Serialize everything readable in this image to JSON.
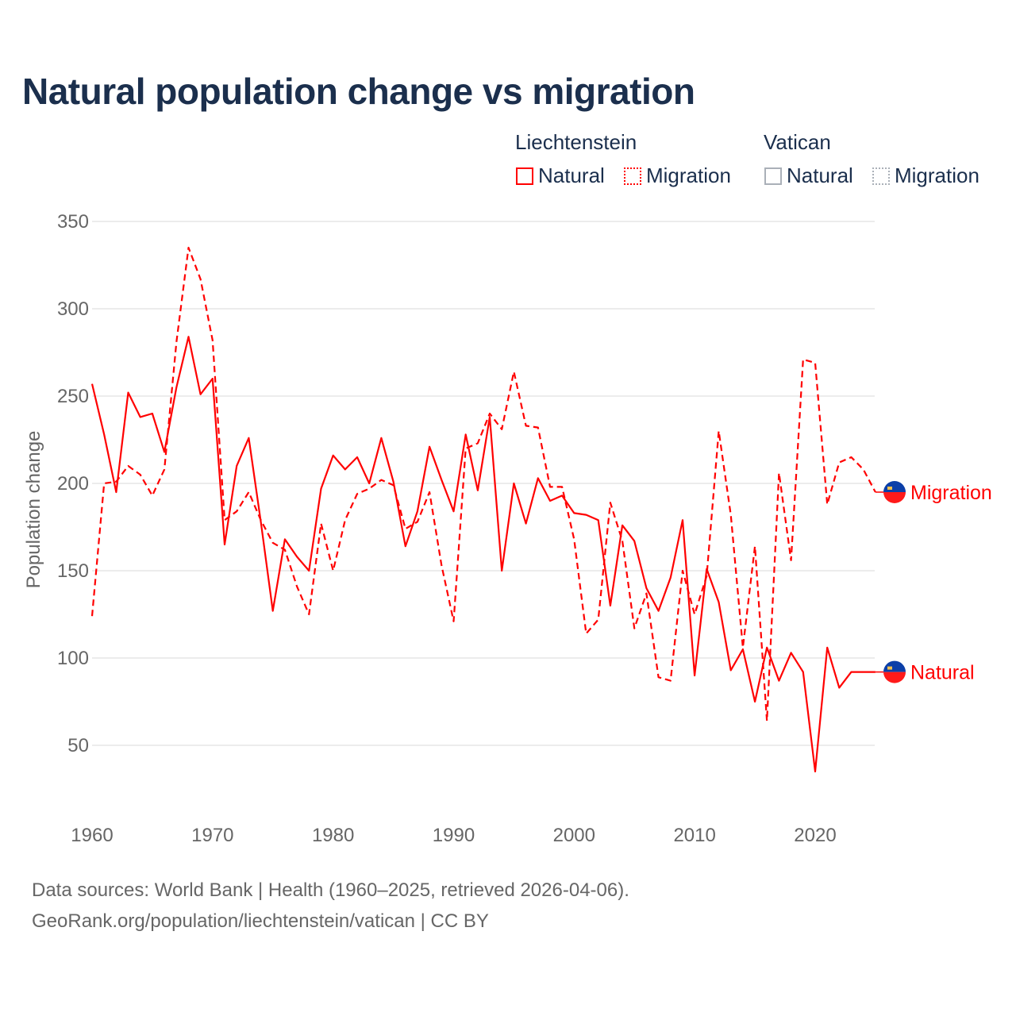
{
  "title": "Natural population change vs migration",
  "legend": {
    "groups": [
      {
        "name": "Liechtenstein",
        "color": "#ff0000",
        "items": [
          "Natural",
          "Migration"
        ]
      },
      {
        "name": "Vatican",
        "color": "#aab0b8",
        "items": [
          "Natural",
          "Migration"
        ]
      }
    ]
  },
  "footer": {
    "line1": "Data sources: World Bank | Health (1960–2025, retrieved 2026-04-06).",
    "line2": "GeoRank.org/population/liechtenstein/vatican | CC BY"
  },
  "chart_data": {
    "type": "line",
    "title": "Natural population change vs migration",
    "xlabel": "",
    "ylabel": "Population change",
    "xlim": [
      1960,
      2025
    ],
    "ylim": [
      20,
      350
    ],
    "yticks": [
      50,
      100,
      150,
      200,
      250,
      300,
      350
    ],
    "xticks": [
      1960,
      1970,
      1980,
      1990,
      2000,
      2010,
      2020
    ],
    "grid": true,
    "legend_position": "top-right",
    "x_start": 1960,
    "series": [
      {
        "name": "Natural",
        "country": "Liechtenstein",
        "style": "solid",
        "color": "#ff0000",
        "end_label": "Natural",
        "values": [
          257,
          228,
          195,
          252,
          238,
          240,
          218,
          255,
          284,
          251,
          260,
          165,
          210,
          226,
          178,
          127,
          168,
          158,
          150,
          197,
          216,
          208,
          215,
          200,
          226,
          201,
          164,
          184,
          221,
          202,
          184,
          228,
          196,
          238,
          150,
          200,
          177,
          203,
          190,
          193,
          183,
          182,
          179,
          130,
          176,
          167,
          140,
          127,
          146,
          179,
          90,
          151,
          132,
          93,
          105,
          75,
          106,
          87,
          103,
          92,
          35,
          106,
          83,
          92,
          92,
          92
        ]
      },
      {
        "name": "Migration",
        "country": "Liechtenstein",
        "style": "dashed",
        "color": "#ff0000",
        "end_label": "Migration",
        "values": [
          124,
          200,
          201,
          210,
          205,
          193,
          208,
          281,
          335,
          317,
          282,
          179,
          184,
          195,
          179,
          166,
          162,
          141,
          125,
          177,
          150,
          179,
          194,
          197,
          202,
          199,
          174,
          178,
          195,
          153,
          121,
          220,
          223,
          240,
          231,
          264,
          233,
          232,
          198,
          198,
          168,
          114,
          122,
          189,
          167,
          117,
          137,
          89,
          87,
          150,
          125,
          147,
          230,
          182,
          106,
          164,
          64,
          206,
          156,
          271,
          269,
          188,
          212,
          215,
          208,
          195
        ]
      }
    ]
  }
}
